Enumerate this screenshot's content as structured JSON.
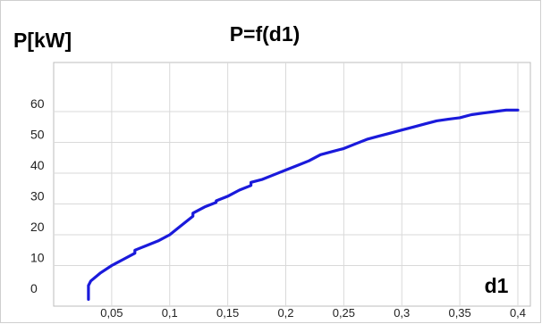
{
  "chart_data": {
    "type": "line",
    "title": "P=f(d1)",
    "ylabel": "P[kW]",
    "xlabel": "d1",
    "xlim": [
      0,
      0.4
    ],
    "ylim": [
      0,
      70
    ],
    "x_ticks": [
      {
        "value": 0.05,
        "label": "0,05"
      },
      {
        "value": 0.1,
        "label": "0,1"
      },
      {
        "value": 0.15,
        "label": "0,15"
      },
      {
        "value": 0.2,
        "label": "0,2"
      },
      {
        "value": 0.25,
        "label": "0,25"
      },
      {
        "value": 0.3,
        "label": "0,3"
      },
      {
        "value": 0.35,
        "label": "0,35"
      },
      {
        "value": 0.4,
        "label": "0,4"
      }
    ],
    "y_ticks": [
      {
        "value": 0,
        "label": "0"
      },
      {
        "value": 10,
        "label": "10"
      },
      {
        "value": 20,
        "label": "20"
      },
      {
        "value": 30,
        "label": "30"
      },
      {
        "value": 40,
        "label": "40"
      },
      {
        "value": 50,
        "label": "50"
      },
      {
        "value": 60,
        "label": "60"
      }
    ],
    "grid": true,
    "series": [
      {
        "color": "#1a1adb",
        "x": [
          0.03,
          0.03,
          0.032,
          0.04,
          0.05,
          0.06,
          0.07,
          0.07,
          0.08,
          0.09,
          0.1,
          0.11,
          0.12,
          0.12,
          0.13,
          0.14,
          0.14,
          0.15,
          0.16,
          0.17,
          0.17,
          0.18,
          0.19,
          0.2,
          0.21,
          0.22,
          0.23,
          0.24,
          0.25,
          0.26,
          0.27,
          0.28,
          0.29,
          0.3,
          0.31,
          0.32,
          0.33,
          0.34,
          0.35,
          0.36,
          0.37,
          0.38,
          0.39,
          0.4
        ],
        "y": [
          -1,
          3.5,
          5,
          7.5,
          10,
          12,
          14,
          15,
          16.5,
          18,
          20,
          23,
          26,
          27,
          29,
          30.5,
          31,
          32.5,
          34.5,
          36,
          37,
          38,
          39.5,
          41,
          42.5,
          44,
          46,
          47,
          48,
          49.5,
          51,
          52,
          53,
          54,
          55,
          56,
          57,
          57.5,
          58,
          59,
          59.5,
          60,
          60.5,
          60.5
        ]
      }
    ]
  }
}
